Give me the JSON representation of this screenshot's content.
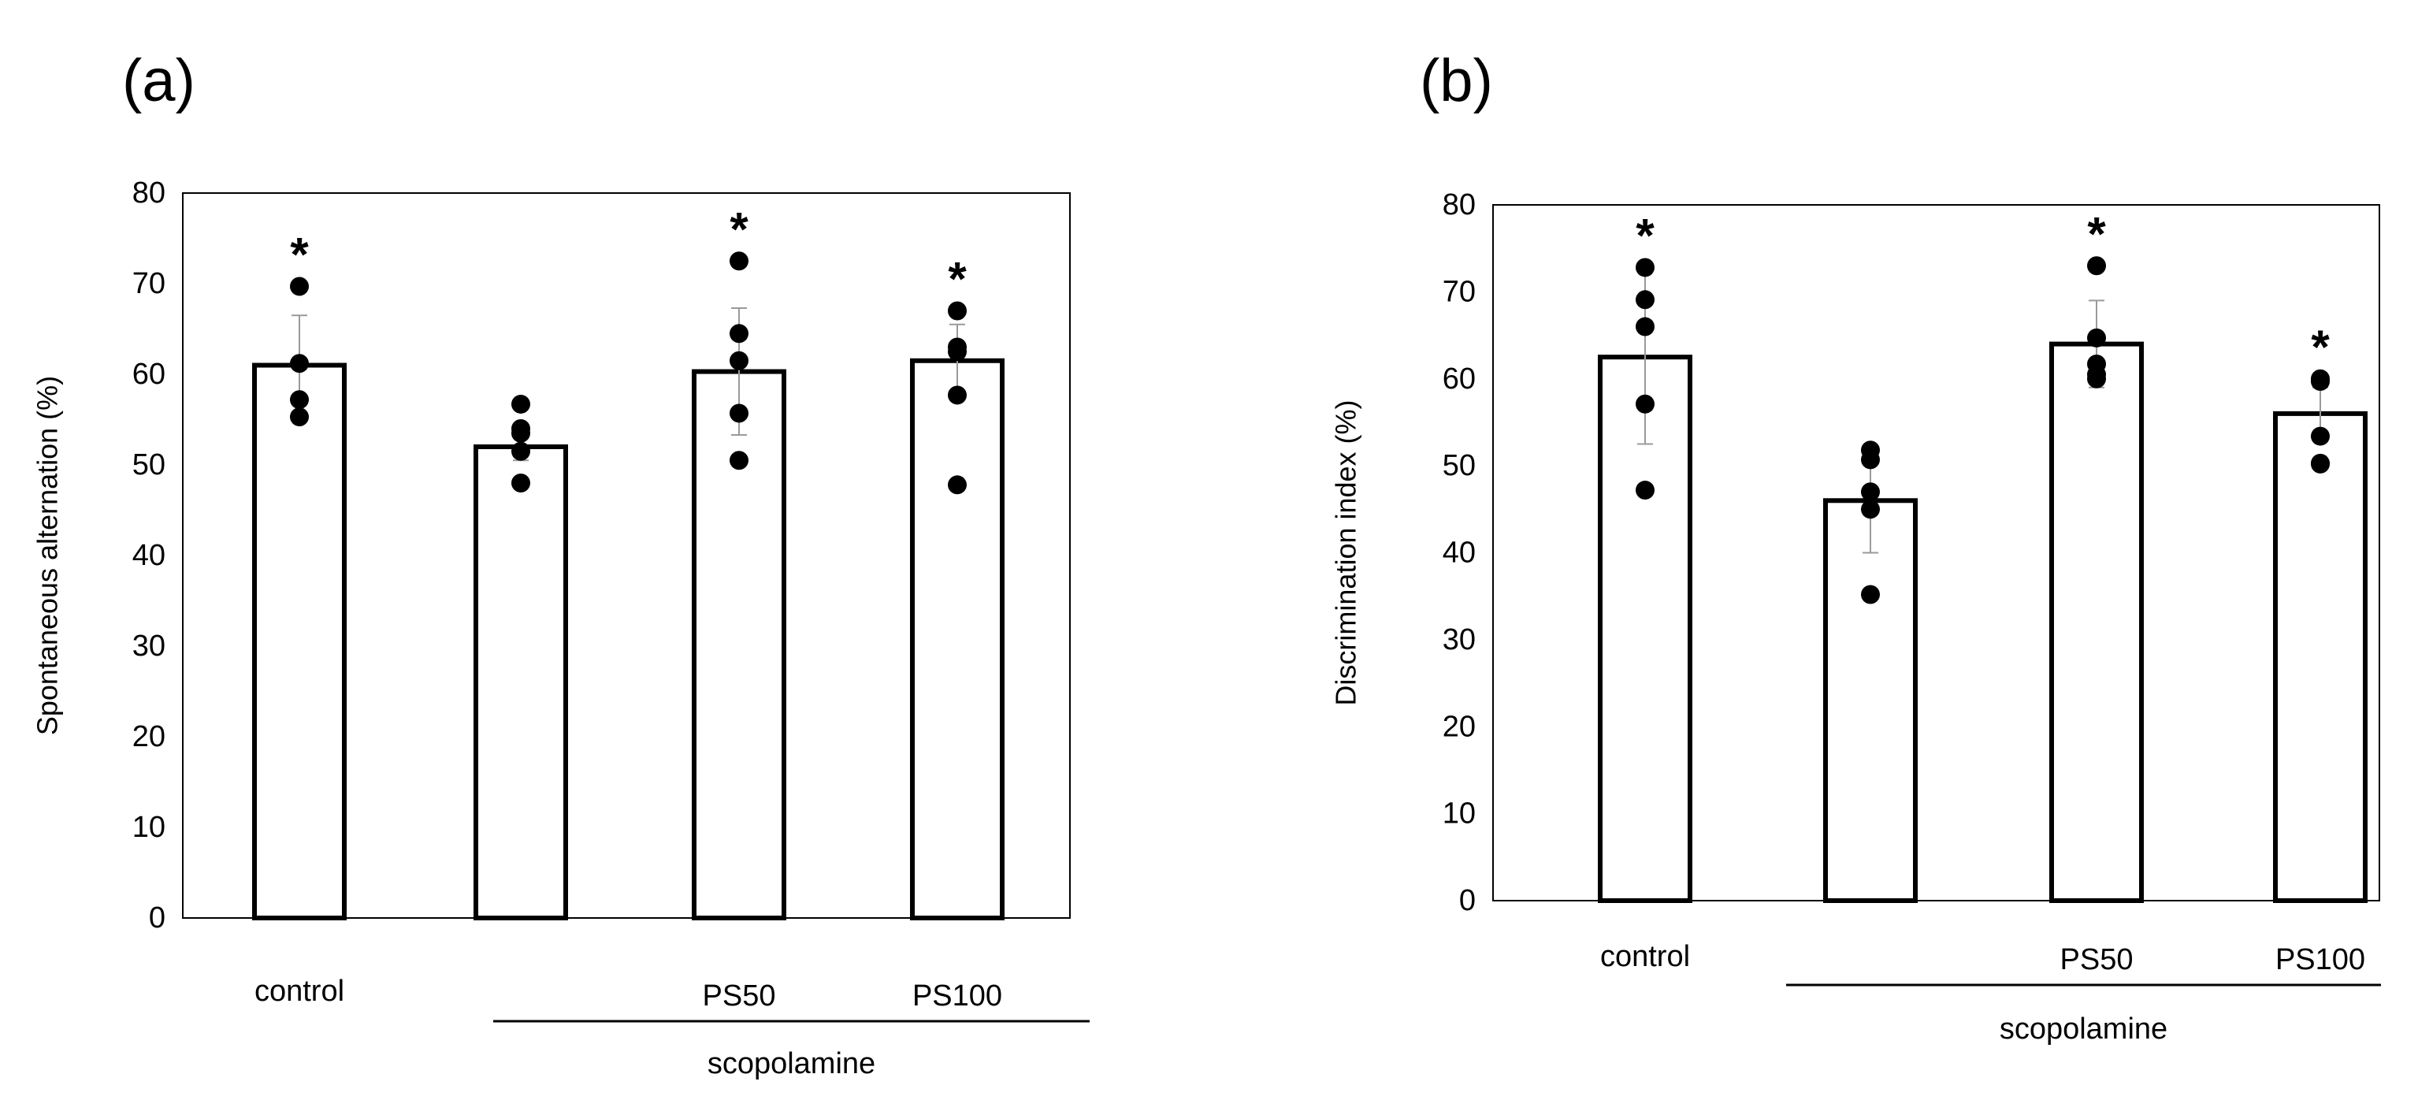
{
  "chart_data": [
    {
      "type": "bar",
      "panel_label": "(a)",
      "ylabel": "Spontaneous alternation (%)",
      "ylim": [
        0,
        80
      ],
      "yticks": [
        "0",
        "10",
        "20",
        "30",
        "40",
        "50",
        "60",
        "70",
        "80"
      ],
      "categories": [
        "control",
        "",
        "PS50",
        "PS100"
      ],
      "group_label": "scopolamine",
      "values": [
        61,
        52,
        60.3,
        61.5
      ],
      "errors": [
        5.5,
        1.5,
        7,
        4
      ],
      "points": [
        [
          69.7,
          61.2,
          57.2,
          55.3
        ],
        [
          56.7,
          54,
          53.5,
          51.5,
          48
        ],
        [
          72.5,
          64.5,
          61.5,
          55.7,
          50.5
        ],
        [
          67,
          63,
          62.5,
          57.7,
          47.8
        ]
      ],
      "significance": [
        "*",
        "",
        "*",
        "*"
      ]
    },
    {
      "type": "bar",
      "panel_label": "(b)",
      "ylabel": "Discrimination index (%)",
      "ylim": [
        0,
        80
      ],
      "yticks": [
        "0",
        "10",
        "20",
        "30",
        "40",
        "50",
        "60",
        "70",
        "80"
      ],
      "categories": [
        "control",
        "",
        "PS50",
        "PS100"
      ],
      "group_label": "scopolamine",
      "values": [
        62.5,
        46,
        64,
        56
      ],
      "errors": [
        10,
        6,
        5,
        3
      ],
      "points": [
        [
          72.8,
          69.1,
          66,
          57.1,
          47.2
        ],
        [
          51.8,
          50.7,
          47,
          45,
          35.2
        ],
        [
          73,
          64.7,
          61.7,
          60.5,
          60
        ],
        [
          60,
          59.7,
          53.4,
          50.3,
          50.2
        ]
      ],
      "significance": [
        "*",
        "",
        "*",
        "*"
      ]
    }
  ]
}
